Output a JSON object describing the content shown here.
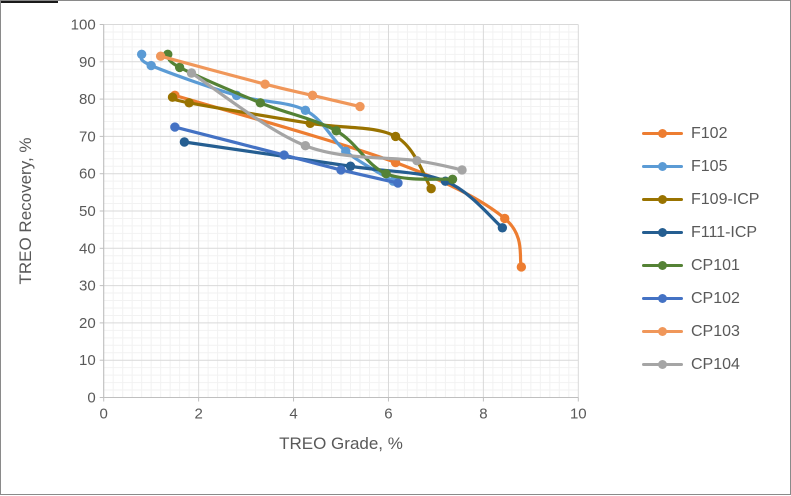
{
  "window": {
    "border_color": "#8a8a8a",
    "background": "#ffffff"
  },
  "styles": {
    "axis_text_color": "#595959",
    "axis_line_color": "#bfbfbf",
    "major_grid_color": "#d9d9d9",
    "minor_grid_color": "#f2f2f2",
    "plot_background": "#ffffff"
  },
  "chart_data": {
    "type": "line",
    "title": "",
    "xlabel": "TREO Grade, %",
    "ylabel": "TREO Recovery, %",
    "xlim": [
      0,
      10
    ],
    "ylim": [
      0,
      100
    ],
    "x_ticks": [
      0,
      2,
      4,
      6,
      8,
      10
    ],
    "y_ticks": [
      0,
      10,
      20,
      30,
      40,
      50,
      60,
      70,
      80,
      90,
      100
    ],
    "x_major_step": 2,
    "x_minor_step": 0.2,
    "y_major_step": 10,
    "y_minor_step": 2,
    "grid": "major+minor",
    "legend_position": "right",
    "line_style": "smoothed-with-round-markers",
    "series": [
      {
        "name": "F102",
        "color": "#ED7D31",
        "points": [
          [
            1.5,
            81
          ],
          [
            6.15,
            63
          ],
          [
            8.45,
            48
          ],
          [
            8.8,
            35
          ]
        ]
      },
      {
        "name": "F105",
        "color": "#5B9BD5",
        "points": [
          [
            0.8,
            92
          ],
          [
            1.0,
            89
          ],
          [
            2.8,
            81
          ],
          [
            4.25,
            77
          ],
          [
            5.1,
            66
          ],
          [
            6.1,
            58
          ]
        ]
      },
      {
        "name": "F109-ICP",
        "color": "#997300",
        "points": [
          [
            1.45,
            80.5
          ],
          [
            1.8,
            79
          ],
          [
            4.35,
            73.5
          ],
          [
            6.15,
            70
          ],
          [
            6.9,
            56
          ]
        ]
      },
      {
        "name": "F111-ICP",
        "color": "#255E91",
        "points": [
          [
            1.7,
            68.5
          ],
          [
            5.2,
            62
          ],
          [
            7.2,
            58
          ],
          [
            8.4,
            45.5
          ]
        ]
      },
      {
        "name": "CP101",
        "color": "#548235",
        "points": [
          [
            1.35,
            92
          ],
          [
            1.6,
            88.5
          ],
          [
            3.3,
            79
          ],
          [
            4.9,
            71.5
          ],
          [
            5.95,
            60
          ],
          [
            7.35,
            58.5
          ]
        ]
      },
      {
        "name": "CP102",
        "color": "#4472C4",
        "points": [
          [
            1.5,
            72.5
          ],
          [
            3.8,
            65
          ],
          [
            5.0,
            61
          ],
          [
            6.2,
            57.5
          ]
        ]
      },
      {
        "name": "CP103",
        "color": "#F0975A",
        "points": [
          [
            1.2,
            91.5
          ],
          [
            3.4,
            84
          ],
          [
            4.4,
            81
          ],
          [
            5.4,
            78
          ]
        ]
      },
      {
        "name": "CP104",
        "color": "#A5A5A5",
        "points": [
          [
            1.85,
            87
          ],
          [
            4.25,
            67.5
          ],
          [
            6.6,
            63.5
          ],
          [
            7.55,
            61
          ]
        ]
      }
    ]
  }
}
